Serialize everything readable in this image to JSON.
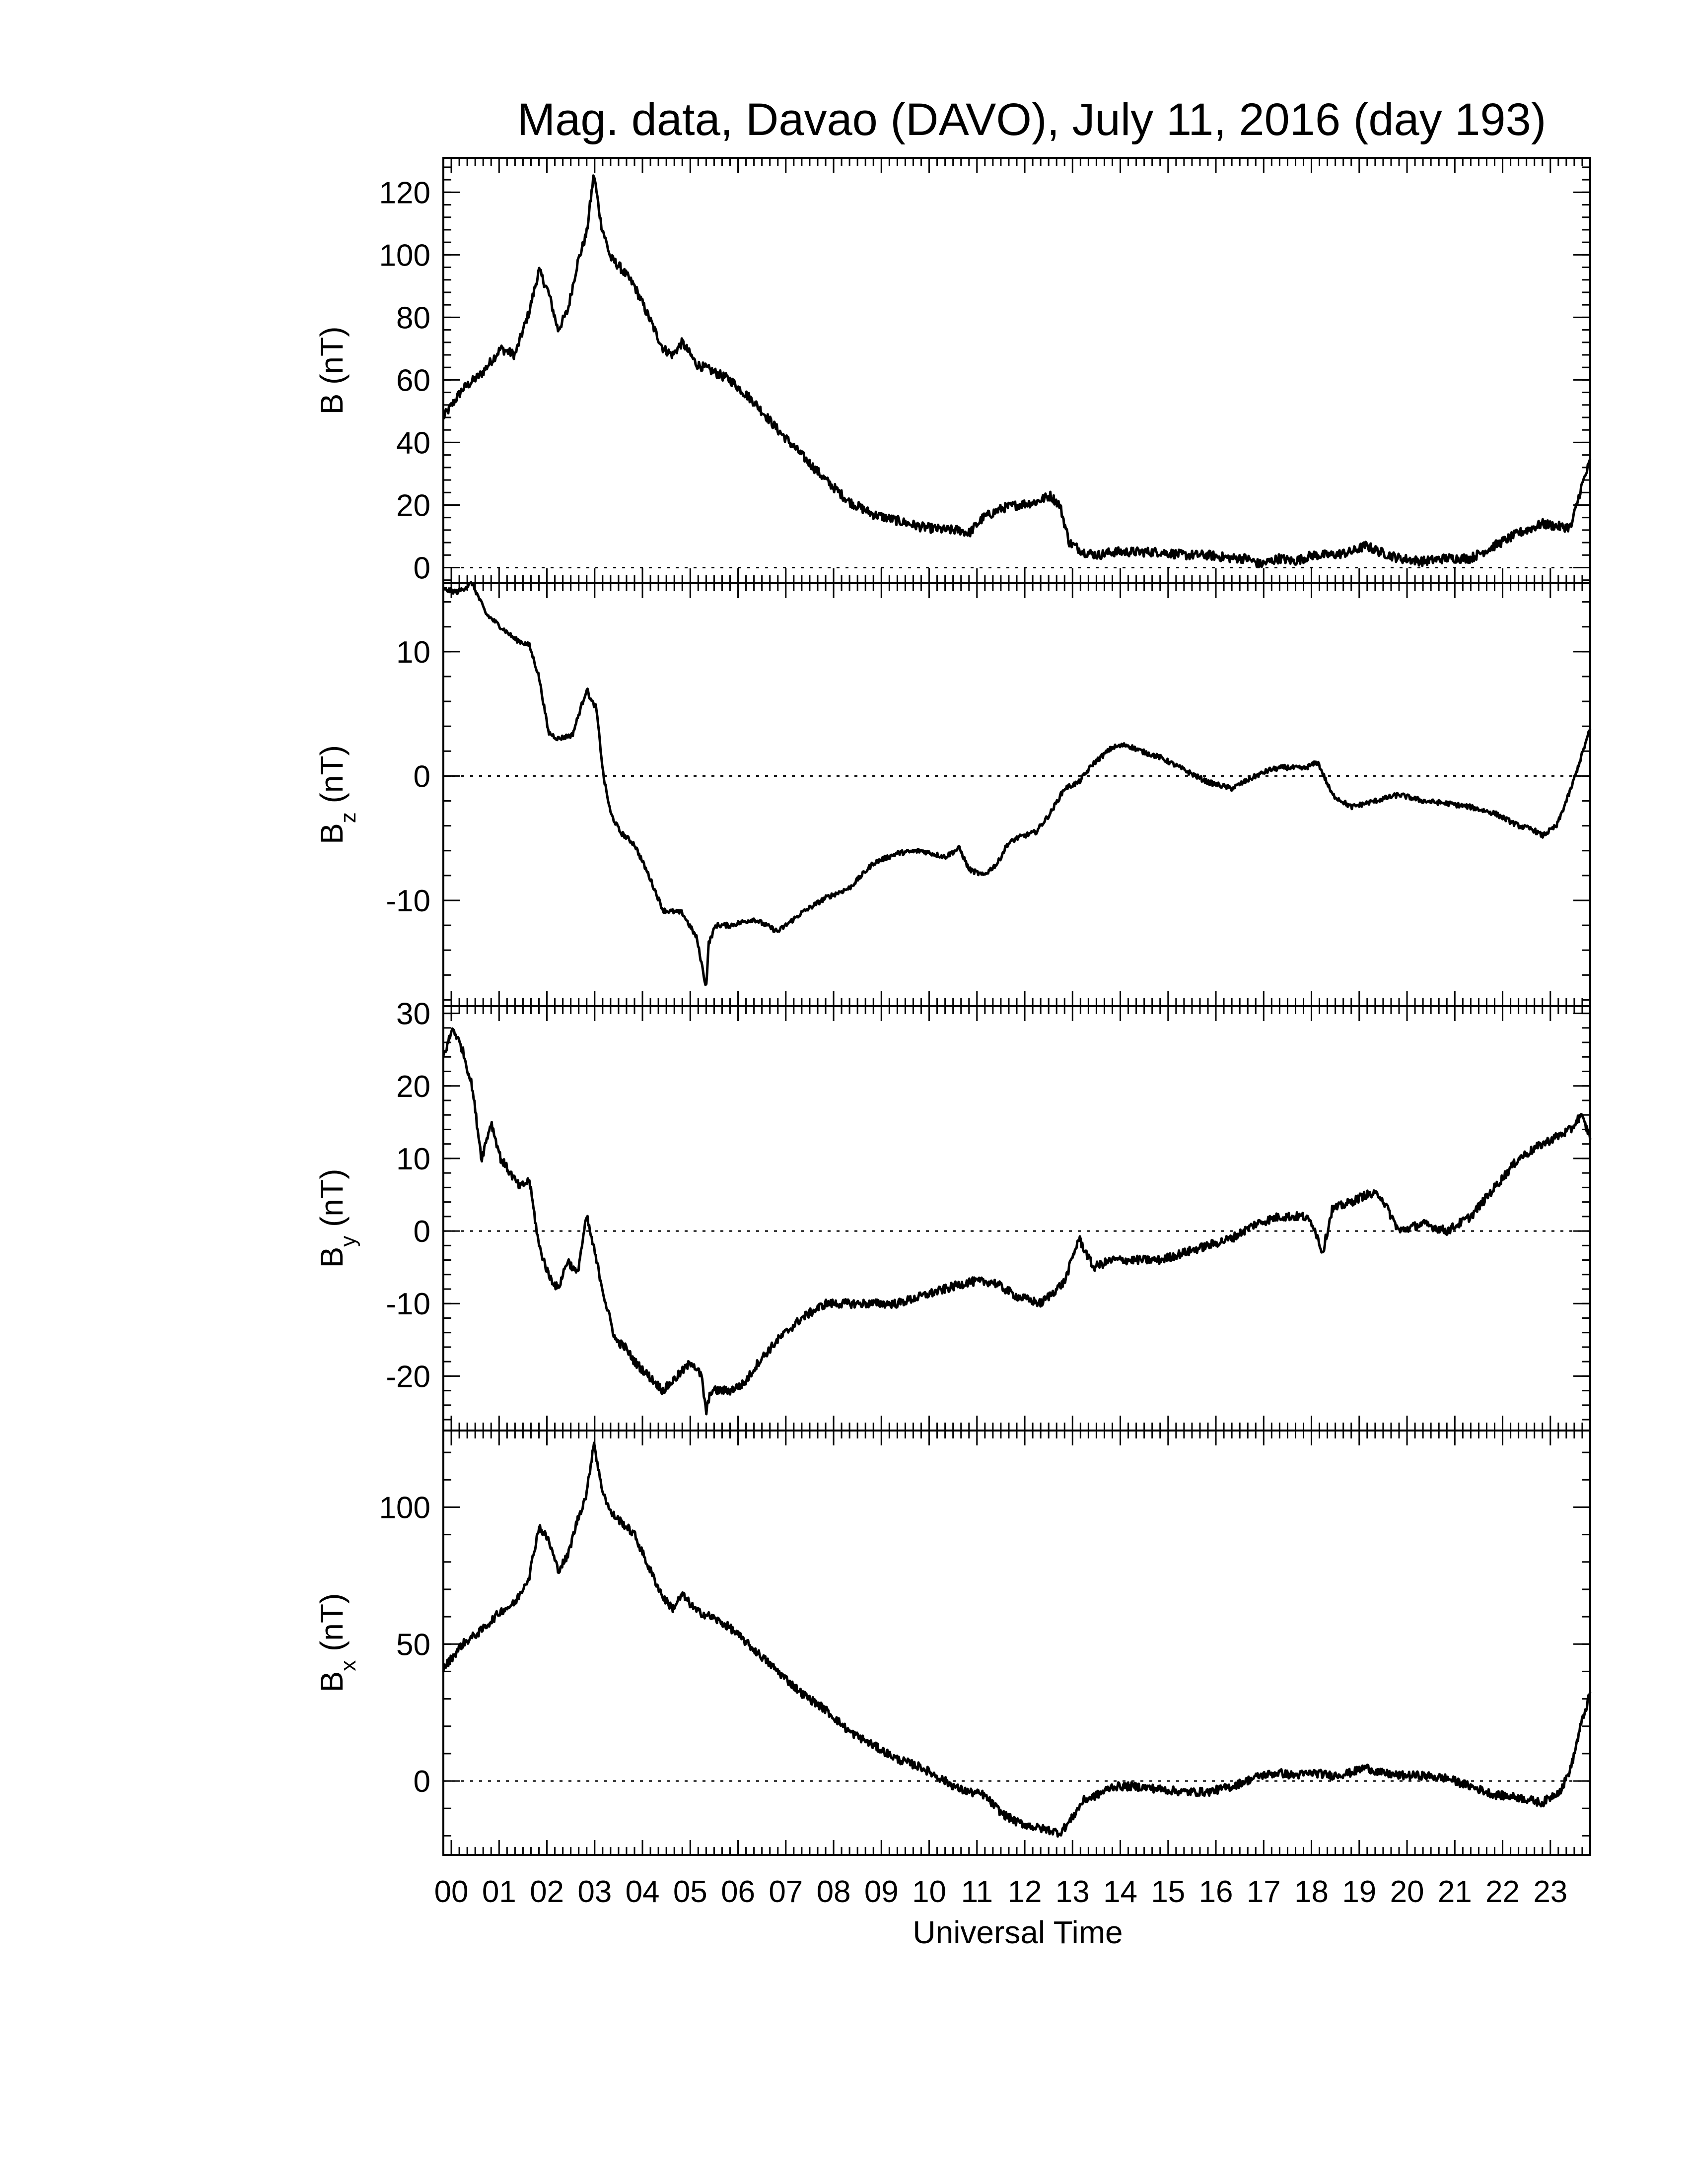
{
  "title": "Mag. data, Davao (DAVO), July 11, 2016 (day 193)",
  "xlabel": "Universal Time",
  "colors": {
    "trace": "#000000",
    "background": "#ffffff"
  },
  "chart_data": [
    {
      "type": "line",
      "ylabel": "B (nT)",
      "ylabel_main": "B",
      "ylabel_sub": "",
      "ylabel_unit": "(nT)",
      "xlim": [
        0,
        24
      ],
      "ylim": [
        -5,
        131
      ],
      "yticks": [
        0,
        20,
        40,
        60,
        80,
        100,
        120
      ],
      "ytick_labels": [
        "0",
        "20",
        "40",
        "60",
        "80",
        "100",
        "120"
      ],
      "zero_line": true,
      "noise": 1.5,
      "x": [
        0.0,
        0.4,
        0.8,
        1.2,
        1.5,
        1.8,
        2.0,
        2.2,
        2.4,
        2.6,
        2.8,
        3.0,
        3.15,
        3.3,
        3.5,
        3.7,
        4.0,
        4.3,
        4.6,
        4.8,
        5.0,
        5.3,
        5.6,
        6.0,
        6.5,
        7.0,
        7.5,
        8.0,
        8.5,
        9.0,
        9.5,
        10.0,
        10.5,
        10.8,
        11.0,
        11.3,
        11.7,
        12.0,
        12.4,
        12.7,
        12.9,
        13.1,
        13.4,
        13.7,
        14.0,
        14.5,
        15.0,
        15.5,
        16.0,
        16.5,
        16.8,
        17.1,
        17.5,
        17.8,
        18.2,
        18.6,
        19.0,
        19.3,
        19.6,
        20.0,
        20.5,
        21.0,
        21.5,
        22.0,
        22.5,
        23.0,
        23.4,
        23.6,
        23.8,
        24.0
      ],
      "y": [
        48,
        57,
        62,
        70,
        68,
        82,
        95,
        88,
        76,
        82,
        97,
        107,
        126,
        110,
        99,
        96,
        90,
        80,
        70,
        68,
        72,
        65,
        63,
        60,
        53,
        44,
        36,
        28,
        21,
        17,
        15,
        13,
        12,
        12,
        11,
        16,
        19,
        20,
        21,
        23,
        20,
        8,
        5,
        4,
        5,
        5,
        5,
        4,
        4,
        3,
        3,
        1,
        3,
        2,
        4,
        4,
        5,
        7,
        5,
        3,
        2,
        3,
        3,
        7,
        11,
        14,
        13,
        13,
        25,
        34
      ]
    },
    {
      "type": "line",
      "ylabel": "Bz (nT)",
      "ylabel_main": "B",
      "ylabel_sub": "z",
      "ylabel_unit": "(nT)",
      "xlim": [
        0,
        24
      ],
      "ylim": [
        -18.5,
        15.5
      ],
      "yticks": [
        -10,
        0,
        10
      ],
      "ytick_labels": [
        "-10",
        "0",
        "10"
      ],
      "zero_line": true,
      "noise": 0.2,
      "x": [
        0.0,
        0.3,
        0.6,
        0.9,
        1.2,
        1.5,
        1.8,
        2.0,
        2.2,
        2.4,
        2.7,
        3.0,
        3.1,
        3.2,
        3.35,
        3.5,
        3.7,
        4.0,
        4.3,
        4.6,
        5.0,
        5.3,
        5.5,
        5.55,
        5.7,
        6.0,
        6.5,
        7.0,
        7.5,
        8.0,
        8.5,
        9.0,
        9.5,
        10.0,
        10.5,
        10.8,
        11.0,
        11.3,
        11.6,
        11.8,
        12.0,
        12.4,
        12.7,
        13.0,
        13.3,
        13.6,
        14.0,
        14.3,
        14.6,
        15.0,
        15.5,
        16.0,
        16.5,
        17.0,
        17.3,
        17.6,
        18.0,
        18.3,
        18.6,
        19.0,
        19.5,
        20.0,
        20.5,
        21.0,
        21.5,
        22.0,
        22.5,
        22.8,
        23.0,
        23.3,
        23.6,
        24.0
      ],
      "y": [
        15,
        14.8,
        15.5,
        13,
        12,
        11,
        10.5,
        8,
        3.5,
        3,
        3.3,
        7,
        6,
        5.5,
        0,
        -3,
        -4.5,
        -5.5,
        -8,
        -10.8,
        -11,
        -13,
        -17,
        -13.5,
        -12,
        -12,
        -11.5,
        -12.5,
        -11,
        -9.8,
        -9,
        -7,
        -6.2,
        -6,
        -6.5,
        -5.8,
        -7.5,
        -8,
        -7,
        -5.5,
        -5,
        -4.5,
        -3,
        -1,
        -0.5,
        1,
        2.3,
        2.5,
        2,
        1.5,
        0.5,
        -0.5,
        -1,
        0,
        0.5,
        0.7,
        0.6,
        1.1,
        -1.5,
        -2.5,
        -2,
        -1.5,
        -2,
        -2.2,
        -2.5,
        -3,
        -4,
        -4.3,
        -4.8,
        -4,
        -1,
        3.8
      ]
    },
    {
      "type": "line",
      "ylabel": "By (nT)",
      "ylabel_main": "B",
      "ylabel_sub": "y",
      "ylabel_unit": "(nT)",
      "xlim": [
        0,
        24
      ],
      "ylim": [
        -27.5,
        31
      ],
      "yticks": [
        -20,
        -10,
        0,
        10,
        20,
        30
      ],
      "ytick_labels": [
        "-20",
        "-10",
        "0",
        "10",
        "20",
        "30"
      ],
      "zero_line": true,
      "noise": 0.6,
      "x": [
        0.0,
        0.2,
        0.4,
        0.6,
        0.8,
        1.0,
        1.2,
        1.4,
        1.6,
        1.8,
        2.0,
        2.2,
        2.4,
        2.6,
        2.8,
        3.0,
        3.2,
        3.4,
        3.6,
        3.8,
        4.0,
        4.3,
        4.6,
        4.9,
        5.2,
        5.4,
        5.5,
        5.6,
        5.8,
        6.0,
        6.3,
        6.6,
        7.0,
        7.5,
        8.0,
        8.5,
        9.0,
        9.5,
        10.0,
        10.5,
        11.0,
        11.5,
        12.0,
        12.5,
        13.0,
        13.3,
        13.6,
        14.0,
        14.5,
        15.0,
        15.5,
        16.0,
        16.5,
        17.0,
        17.5,
        18.0,
        18.2,
        18.4,
        18.6,
        19.0,
        19.3,
        19.6,
        20.0,
        20.5,
        21.0,
        21.5,
        22.0,
        22.5,
        23.0,
        23.3,
        23.6,
        23.8,
        24.0
      ],
      "y": [
        24,
        28,
        25,
        20,
        10,
        15,
        10,
        8,
        6,
        7,
        -2,
        -6,
        -8,
        -4,
        -6,
        2,
        -4,
        -10,
        -15,
        -16,
        -18,
        -20,
        -22,
        -20,
        -18,
        -20,
        -25,
        -22,
        -22,
        -22,
        -21,
        -18,
        -15,
        -12,
        -10,
        -10,
        -10,
        -10,
        -9,
        -8,
        -7,
        -7,
        -9,
        -10,
        -7,
        -1,
        -5,
        -4,
        -4,
        -4,
        -3,
        -2,
        -1,
        1,
        2,
        2,
        1,
        -3,
        3,
        4,
        5,
        5,
        0,
        1,
        0,
        2,
        6,
        10,
        12,
        13,
        14,
        16,
        13
      ]
    },
    {
      "type": "line",
      "ylabel": "Bx (nT)",
      "ylabel_main": "B",
      "ylabel_sub": "x",
      "ylabel_unit": "(nT)",
      "xlim": [
        0,
        24
      ],
      "ylim": [
        -27,
        128
      ],
      "yticks": [
        0,
        50,
        100
      ],
      "ytick_labels": [
        "0",
        "50",
        "100"
      ],
      "zero_line": true,
      "noise": 1.5,
      "x": [
        0.0,
        0.4,
        0.8,
        1.2,
        1.5,
        1.8,
        2.0,
        2.2,
        2.4,
        2.6,
        2.8,
        3.0,
        3.15,
        3.3,
        3.5,
        3.7,
        4.0,
        4.3,
        4.6,
        4.8,
        5.0,
        5.3,
        5.6,
        6.0,
        6.5,
        7.0,
        7.5,
        8.0,
        8.5,
        9.0,
        9.5,
        10.0,
        10.5,
        10.8,
        11.0,
        11.3,
        11.7,
        12.0,
        12.4,
        12.7,
        12.9,
        13.1,
        13.4,
        13.7,
        14.0,
        14.5,
        15.0,
        15.5,
        16.0,
        16.5,
        16.8,
        17.1,
        17.5,
        17.8,
        18.2,
        18.6,
        19.0,
        19.3,
        19.6,
        20.0,
        20.5,
        21.0,
        21.5,
        22.0,
        22.5,
        23.0,
        23.4,
        23.6,
        23.8,
        24.0
      ],
      "y": [
        41,
        50,
        55,
        62,
        65,
        75,
        93,
        88,
        77,
        82,
        95,
        105,
        124,
        108,
        98,
        95,
        90,
        78,
        67,
        63,
        68,
        62,
        60,
        56,
        48,
        40,
        32,
        26,
        18,
        13,
        8,
        5,
        0,
        -3,
        -4,
        -5,
        -12,
        -15,
        -17,
        -18,
        -19,
        -15,
        -7,
        -5,
        -2,
        -2,
        -3,
        -4,
        -4,
        -2,
        0,
        2,
        3,
        2,
        3,
        2,
        3,
        5,
        3,
        2,
        2,
        1,
        -2,
        -5,
        -6,
        -8,
        -3,
        5,
        20,
        32
      ]
    }
  ],
  "xaxis": {
    "xlim": [
      0,
      24
    ],
    "ticks": [
      0.167,
      1.167,
      2.167,
      3.167,
      4.167,
      5.167,
      6.167,
      7.167,
      8.167,
      9.167,
      10.167,
      11.167,
      12.167,
      13.167,
      14.167,
      15.167,
      16.167,
      17.167,
      18.167,
      19.167,
      20.167,
      21.167,
      22.167,
      23.167
    ],
    "tick_labels": [
      "00",
      "01",
      "02",
      "03",
      "04",
      "05",
      "06",
      "07",
      "08",
      "09",
      "10",
      "11",
      "12",
      "13",
      "14",
      "15",
      "16",
      "17",
      "18",
      "19",
      "20",
      "21",
      "22",
      "23"
    ]
  }
}
